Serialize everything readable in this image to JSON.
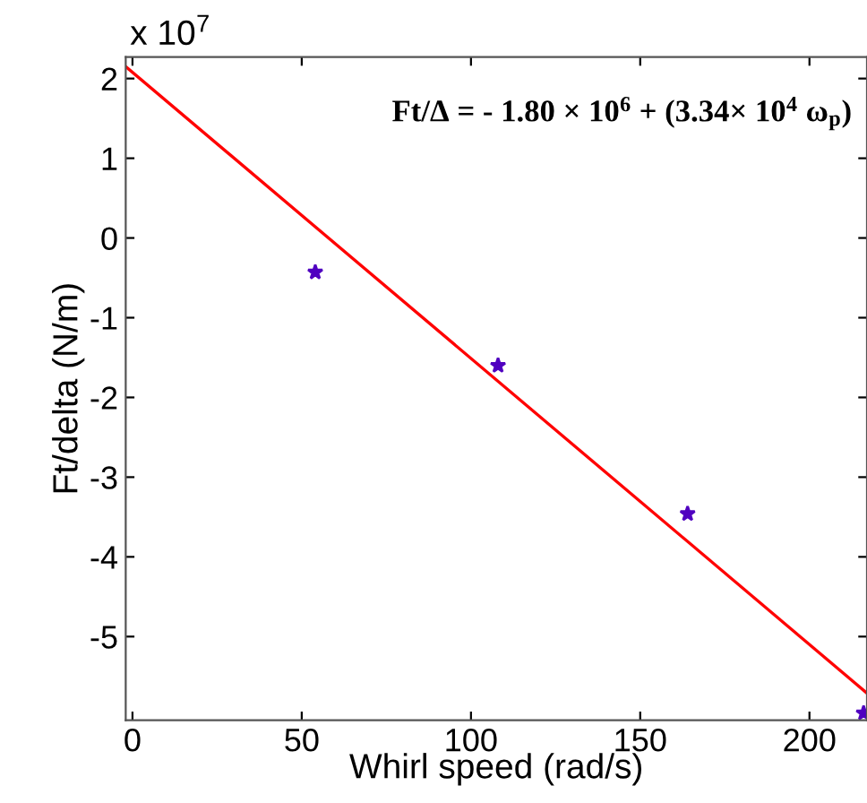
{
  "chart_data": {
    "type": "scatter",
    "xlabel": "Whirl speed (rad/s)",
    "ylabel": "Ft/delta (N/m)",
    "annotations": [
      "x 10$^{7}$",
      "Ft/Δ = - 1.80 × 10$^{6}$ + (3.34× 10$^{4}$ ω$_{p}$)"
    ],
    "xlim": [
      -2,
      217
    ],
    "xticks": [
      0,
      50,
      100,
      150,
      200
    ],
    "ylim": [
      -6.05,
      2.27
    ],
    "yticks": [
      2,
      1,
      0,
      -1,
      -2,
      -3,
      -4,
      -5
    ],
    "grid": false,
    "legend": false,
    "marker": "star",
    "series": [
      {
        "color": "#5000c0",
        "x": [
          54,
          108,
          164,
          216
        ],
        "values": [
          -0.43,
          -1.6,
          -3.46,
          -5.96
        ]
      },
      {
        "type": "line",
        "color": "#ff0000",
        "line_style": "solid",
        "marker": "none",
        "x": [
          -2,
          217
        ],
        "values": [
          2.15,
          -5.71
        ]
      }
    ]
  }
}
